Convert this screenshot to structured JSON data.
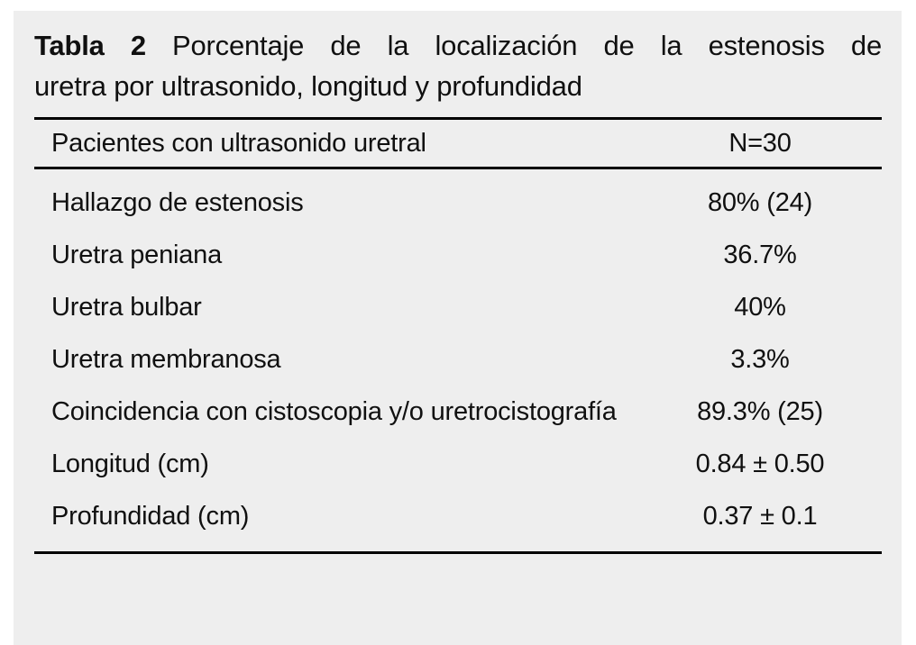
{
  "table": {
    "title": {
      "label": "Tabla 2",
      "line1_rest": "Porcentaje de la localización de la estenosis de",
      "line2": "uretra por ultrasonido, longitud y profundidad"
    },
    "header": {
      "label": "Pacientes con ultrasonido uretral",
      "value": "N=30"
    },
    "rows": [
      {
        "label": "Hallazgo de estenosis",
        "value": "80% (24)"
      },
      {
        "label": "Uretra peniana",
        "value": "36.7%"
      },
      {
        "label": "Uretra bulbar",
        "value": "40%"
      },
      {
        "label": "Uretra membranosa",
        "value": "3.3%"
      },
      {
        "label": "Coincidencia con cistoscopia y/o uretrocistografía",
        "value": "89.3% (25)"
      },
      {
        "label": "Longitud (cm)",
        "value": "0.84 ± 0.50"
      },
      {
        "label": "Profundidad (cm)",
        "value": "0.37 ± 0.1"
      }
    ],
    "colors": {
      "panel_bg": "#eeeeee",
      "page_bg": "#ffffff",
      "text": "#101010",
      "rule": "#000000"
    }
  }
}
